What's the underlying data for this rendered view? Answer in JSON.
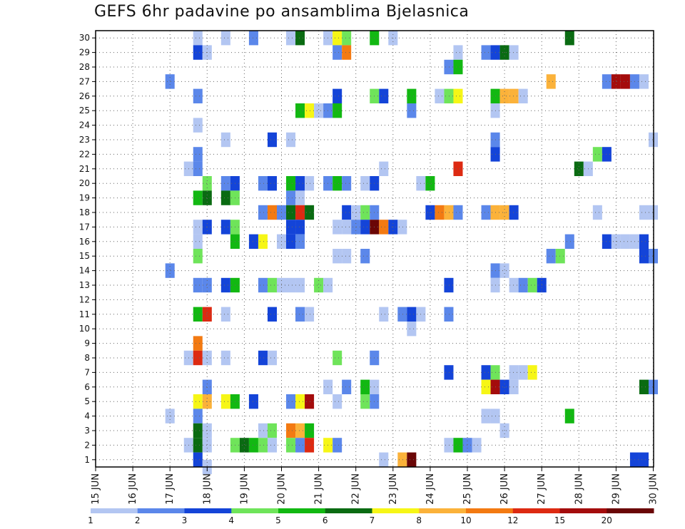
{
  "chart_data": {
    "type": "heatmap",
    "title": "GEFS 6hr padavine po ansamblima Bjelasnica",
    "x_ticks": [
      "15 JUN",
      "16 JUN",
      "17 JUN",
      "18 JUN",
      "19 JUN",
      "20 JUN",
      "21 JUN",
      "22 JUN",
      "23 JUN",
      "24 JUN",
      "25 JUN",
      "26 JUN",
      "27 JUN",
      "28 JUN",
      "29 JUN",
      "30 JUN"
    ],
    "y_ticks": [
      "1",
      "2",
      "3",
      "4",
      "5",
      "6",
      "7",
      "8",
      "9",
      "10",
      "11",
      "12",
      "13",
      "14",
      "15",
      "16",
      "17",
      "18",
      "19",
      "20",
      "21",
      "22",
      "23",
      "24",
      "25",
      "26",
      "27",
      "28",
      "29",
      "30"
    ],
    "xlim": [
      15.0,
      30.0
    ],
    "ylim": [
      0.5,
      30.5
    ],
    "time_step_days": 0.25,
    "grid": true,
    "legend": {
      "placement": "bottom",
      "labels": [
        "1",
        "2",
        "3",
        "4",
        "5",
        "6",
        "7",
        "8",
        "10",
        "12",
        "15",
        "20"
      ],
      "colors": [
        "#b3c6f2",
        "#5b87ea",
        "#1444d8",
        "#6fe45a",
        "#12b812",
        "#0a6b12",
        "#f6f616",
        "#fbb23a",
        "#f37a12",
        "#dd2a12",
        "#a40c0c",
        "#6a0606"
      ]
    },
    "colors": [
      "#b3c6f2",
      "#5b87ea",
      "#1444d8",
      "#6fe45a",
      "#12b812",
      "#0a6b12",
      "#f6f616",
      "#fbb23a",
      "#f37a12",
      "#dd2a12",
      "#a40c0c",
      "#6a0606"
    ],
    "cells": [
      [
        17.75,
        30,
        1
      ],
      [
        18.5,
        30,
        1
      ],
      [
        19.25,
        30,
        2
      ],
      [
        20.25,
        30,
        1
      ],
      [
        20.5,
        30,
        6
      ],
      [
        21.25,
        30,
        1
      ],
      [
        21.5,
        30,
        7
      ],
      [
        21.75,
        30,
        4
      ],
      [
        22.5,
        30,
        5
      ],
      [
        23.0,
        30,
        1
      ],
      [
        27.75,
        30,
        6
      ],
      [
        17.75,
        29,
        3
      ],
      [
        18.0,
        29,
        1
      ],
      [
        21.5,
        29,
        2
      ],
      [
        21.75,
        29,
        9
      ],
      [
        24.75,
        29,
        1
      ],
      [
        25.5,
        29,
        2
      ],
      [
        25.75,
        29,
        3
      ],
      [
        26.0,
        29,
        6
      ],
      [
        26.25,
        29,
        1
      ],
      [
        24.5,
        28,
        2
      ],
      [
        24.75,
        28,
        5
      ],
      [
        17.0,
        27,
        2
      ],
      [
        27.25,
        27,
        8
      ],
      [
        28.75,
        27,
        2
      ],
      [
        29.0,
        27,
        11
      ],
      [
        29.25,
        27,
        11
      ],
      [
        29.5,
        27,
        2
      ],
      [
        29.75,
        27,
        1
      ],
      [
        17.75,
        26,
        2
      ],
      [
        21.5,
        26,
        3
      ],
      [
        22.5,
        26,
        4
      ],
      [
        22.75,
        26,
        3
      ],
      [
        23.5,
        26,
        5
      ],
      [
        24.25,
        26,
        1
      ],
      [
        24.5,
        26,
        4
      ],
      [
        24.75,
        26,
        7
      ],
      [
        25.75,
        26,
        5
      ],
      [
        26.0,
        26,
        8
      ],
      [
        26.25,
        26,
        8
      ],
      [
        26.5,
        26,
        1
      ],
      [
        20.5,
        25,
        5
      ],
      [
        20.75,
        25,
        7
      ],
      [
        21.0,
        25,
        1
      ],
      [
        21.25,
        25,
        2
      ],
      [
        21.5,
        25,
        5
      ],
      [
        23.5,
        25,
        2
      ],
      [
        25.75,
        25,
        1
      ],
      [
        17.75,
        24,
        1
      ],
      [
        18.5,
        23,
        1
      ],
      [
        19.75,
        23,
        3
      ],
      [
        20.25,
        23,
        1
      ],
      [
        25.75,
        23,
        2
      ],
      [
        30.0,
        23,
        1
      ],
      [
        17.75,
        22,
        2
      ],
      [
        25.75,
        22,
        3
      ],
      [
        28.5,
        22,
        4
      ],
      [
        28.75,
        22,
        3
      ],
      [
        17.5,
        21,
        1
      ],
      [
        17.75,
        21,
        2
      ],
      [
        22.75,
        21,
        1
      ],
      [
        24.75,
        21,
        10
      ],
      [
        28.0,
        21,
        6
      ],
      [
        28.25,
        21,
        1
      ],
      [
        18.0,
        20,
        4
      ],
      [
        18.5,
        20,
        2
      ],
      [
        18.75,
        20,
        3
      ],
      [
        19.5,
        20,
        2
      ],
      [
        19.75,
        20,
        3
      ],
      [
        20.25,
        20,
        5
      ],
      [
        20.5,
        20,
        3
      ],
      [
        20.75,
        20,
        1
      ],
      [
        21.25,
        20,
        2
      ],
      [
        21.5,
        20,
        5
      ],
      [
        21.75,
        20,
        2
      ],
      [
        22.25,
        20,
        1
      ],
      [
        22.5,
        20,
        3
      ],
      [
        23.75,
        20,
        1
      ],
      [
        24.0,
        20,
        5
      ],
      [
        17.75,
        19,
        5
      ],
      [
        18.0,
        19,
        6
      ],
      [
        18.5,
        19,
        6
      ],
      [
        18.75,
        19,
        4
      ],
      [
        20.25,
        19,
        2
      ],
      [
        20.5,
        19,
        1
      ],
      [
        19.5,
        18,
        2
      ],
      [
        19.75,
        18,
        9
      ],
      [
        20.0,
        18,
        2
      ],
      [
        20.25,
        18,
        6
      ],
      [
        20.5,
        18,
        10
      ],
      [
        20.75,
        18,
        6
      ],
      [
        21.75,
        18,
        3
      ],
      [
        22.0,
        18,
        1
      ],
      [
        22.25,
        18,
        4
      ],
      [
        22.5,
        18,
        2
      ],
      [
        24.0,
        18,
        3
      ],
      [
        24.25,
        18,
        9
      ],
      [
        24.5,
        18,
        8
      ],
      [
        24.75,
        18,
        2
      ],
      [
        25.5,
        18,
        2
      ],
      [
        25.75,
        18,
        8
      ],
      [
        26.0,
        18,
        8
      ],
      [
        26.25,
        18,
        3
      ],
      [
        28.5,
        18,
        1
      ],
      [
        29.75,
        18,
        1
      ],
      [
        30.0,
        18,
        1
      ],
      [
        17.75,
        17,
        1
      ],
      [
        18.0,
        17,
        3
      ],
      [
        18.5,
        17,
        3
      ],
      [
        18.75,
        17,
        4
      ],
      [
        20.25,
        17,
        3
      ],
      [
        20.5,
        17,
        3
      ],
      [
        21.5,
        17,
        1
      ],
      [
        21.75,
        17,
        1
      ],
      [
        22.0,
        17,
        2
      ],
      [
        22.25,
        17,
        3
      ],
      [
        22.5,
        17,
        12
      ],
      [
        22.75,
        17,
        9
      ],
      [
        23.0,
        17,
        3
      ],
      [
        23.25,
        17,
        1
      ],
      [
        17.75,
        16,
        1
      ],
      [
        18.75,
        16,
        5
      ],
      [
        19.25,
        16,
        3
      ],
      [
        19.5,
        16,
        7
      ],
      [
        20.0,
        16,
        1
      ],
      [
        20.25,
        16,
        3
      ],
      [
        20.5,
        16,
        2
      ],
      [
        27.75,
        16,
        2
      ],
      [
        28.75,
        16,
        3
      ],
      [
        29.0,
        16,
        1
      ],
      [
        29.25,
        16,
        1
      ],
      [
        29.5,
        16,
        1
      ],
      [
        29.75,
        16,
        3
      ],
      [
        17.75,
        15,
        4
      ],
      [
        21.5,
        15,
        1
      ],
      [
        21.75,
        15,
        1
      ],
      [
        22.25,
        15,
        2
      ],
      [
        27.25,
        15,
        2
      ],
      [
        27.5,
        15,
        4
      ],
      [
        29.75,
        15,
        3
      ],
      [
        30.0,
        15,
        2
      ],
      [
        17.0,
        14,
        2
      ],
      [
        25.75,
        14,
        2
      ],
      [
        26.0,
        14,
        1
      ],
      [
        17.75,
        13,
        2
      ],
      [
        18.0,
        13,
        2
      ],
      [
        18.5,
        13,
        3
      ],
      [
        18.75,
        13,
        5
      ],
      [
        19.5,
        13,
        2
      ],
      [
        19.75,
        13,
        4
      ],
      [
        20.0,
        13,
        1
      ],
      [
        20.25,
        13,
        1
      ],
      [
        20.5,
        13,
        1
      ],
      [
        21.0,
        13,
        4
      ],
      [
        21.25,
        13,
        1
      ],
      [
        24.5,
        13,
        3
      ],
      [
        25.75,
        13,
        1
      ],
      [
        26.25,
        13,
        1
      ],
      [
        26.5,
        13,
        2
      ],
      [
        26.75,
        13,
        4
      ],
      [
        27.0,
        13,
        3
      ],
      [
        17.75,
        11,
        5
      ],
      [
        18.0,
        11,
        10
      ],
      [
        18.5,
        11,
        1
      ],
      [
        19.75,
        11,
        3
      ],
      [
        20.5,
        11,
        2
      ],
      [
        20.75,
        11,
        1
      ],
      [
        22.75,
        11,
        1
      ],
      [
        23.25,
        11,
        2
      ],
      [
        23.5,
        11,
        3
      ],
      [
        23.75,
        11,
        1
      ],
      [
        24.5,
        11,
        2
      ],
      [
        23.5,
        10,
        1
      ],
      [
        17.75,
        9,
        9
      ],
      [
        17.5,
        8,
        1
      ],
      [
        17.75,
        8,
        10
      ],
      [
        18.0,
        8,
        1
      ],
      [
        18.5,
        8,
        1
      ],
      [
        19.5,
        8,
        3
      ],
      [
        19.75,
        8,
        1
      ],
      [
        21.5,
        8,
        4
      ],
      [
        22.5,
        8,
        2
      ],
      [
        24.5,
        7,
        3
      ],
      [
        25.5,
        7,
        3
      ],
      [
        25.75,
        7,
        4
      ],
      [
        26.25,
        7,
        1
      ],
      [
        26.5,
        7,
        1
      ],
      [
        26.75,
        7,
        7
      ],
      [
        18.0,
        6,
        2
      ],
      [
        21.25,
        6,
        1
      ],
      [
        21.75,
        6,
        2
      ],
      [
        22.25,
        6,
        5
      ],
      [
        22.5,
        6,
        1
      ],
      [
        25.5,
        6,
        7
      ],
      [
        25.75,
        6,
        11
      ],
      [
        26.0,
        6,
        3
      ],
      [
        26.25,
        6,
        1
      ],
      [
        29.75,
        6,
        6
      ],
      [
        30.0,
        6,
        2
      ],
      [
        17.75,
        5,
        7
      ],
      [
        18.0,
        5,
        8
      ],
      [
        18.5,
        5,
        7
      ],
      [
        18.75,
        5,
        5
      ],
      [
        19.25,
        5,
        3
      ],
      [
        20.25,
        5,
        2
      ],
      [
        20.5,
        5,
        7
      ],
      [
        20.75,
        5,
        11
      ],
      [
        21.5,
        5,
        1
      ],
      [
        22.25,
        5,
        4
      ],
      [
        22.5,
        5,
        2
      ],
      [
        17.0,
        4,
        1
      ],
      [
        17.75,
        4,
        2
      ],
      [
        25.5,
        4,
        1
      ],
      [
        25.75,
        4,
        1
      ],
      [
        27.75,
        4,
        5
      ],
      [
        17.75,
        3,
        6
      ],
      [
        18.0,
        3,
        1
      ],
      [
        19.5,
        3,
        1
      ],
      [
        19.75,
        3,
        4
      ],
      [
        20.25,
        3,
        9
      ],
      [
        20.5,
        3,
        8
      ],
      [
        20.75,
        3,
        5
      ],
      [
        26.0,
        3,
        1
      ],
      [
        17.5,
        2,
        1
      ],
      [
        17.75,
        2,
        6
      ],
      [
        18.0,
        2,
        1
      ],
      [
        18.75,
        2,
        4
      ],
      [
        19.0,
        2,
        6
      ],
      [
        19.25,
        2,
        5
      ],
      [
        19.5,
        2,
        4
      ],
      [
        19.75,
        2,
        1
      ],
      [
        20.25,
        2,
        4
      ],
      [
        20.5,
        2,
        2
      ],
      [
        20.75,
        2,
        10
      ],
      [
        21.25,
        2,
        7
      ],
      [
        21.5,
        2,
        2
      ],
      [
        24.5,
        2,
        1
      ],
      [
        24.75,
        2,
        5
      ],
      [
        25.0,
        2,
        2
      ],
      [
        25.25,
        2,
        1
      ],
      [
        17.75,
        1,
        3
      ],
      [
        22.75,
        1,
        1
      ],
      [
        23.25,
        1,
        8
      ],
      [
        23.5,
        1,
        12
      ],
      [
        29.5,
        1,
        3
      ],
      [
        29.75,
        1,
        3
      ],
      [
        18.0,
        0.5,
        1
      ]
    ]
  }
}
